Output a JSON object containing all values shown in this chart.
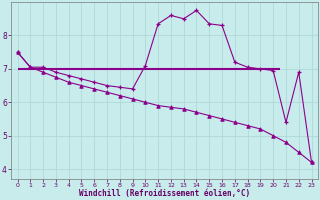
{
  "xlabel": "Windchill (Refroidissement éolien,°C)",
  "background_color": "#c8ecec",
  "grid_color": "#b0d8d8",
  "line_color": "#8b008b",
  "xlim": [
    -0.5,
    23.5
  ],
  "ylim": [
    3.7,
    9.0
  ],
  "yticks": [
    4,
    5,
    6,
    7,
    8
  ],
  "xticks": [
    0,
    1,
    2,
    3,
    4,
    5,
    6,
    7,
    8,
    9,
    10,
    11,
    12,
    13,
    14,
    15,
    16,
    17,
    18,
    19,
    20,
    21,
    22,
    23
  ],
  "curve1_x": [
    0,
    1,
    2,
    3,
    4,
    5,
    6,
    7,
    8,
    9,
    10,
    11,
    12,
    13,
    14,
    15,
    16,
    17,
    18,
    19,
    20,
    21,
    22,
    23
  ],
  "curve1_y": [
    7.5,
    7.05,
    7.05,
    6.9,
    6.8,
    6.7,
    6.6,
    6.5,
    6.45,
    6.4,
    7.1,
    8.35,
    8.6,
    8.5,
    8.75,
    8.35,
    8.3,
    7.2,
    7.05,
    7.0,
    6.95,
    5.4,
    6.9,
    4.2
  ],
  "curve2_x": [
    0,
    1,
    2,
    3,
    4,
    5,
    6,
    7,
    8,
    9,
    10,
    11,
    12,
    13,
    14,
    15,
    16,
    17,
    18,
    19,
    20,
    21,
    22,
    23
  ],
  "curve2_y": [
    7.5,
    7.05,
    6.9,
    6.75,
    6.6,
    6.5,
    6.4,
    6.3,
    6.2,
    6.1,
    6.0,
    5.9,
    5.85,
    5.8,
    5.7,
    5.6,
    5.5,
    5.4,
    5.3,
    5.2,
    5.0,
    4.8,
    4.5,
    4.2
  ],
  "hline_y": 7.0,
  "hline_x_start": 0,
  "hline_x_end": 20.5,
  "tick_color": "#660066",
  "label_color": "#660066"
}
